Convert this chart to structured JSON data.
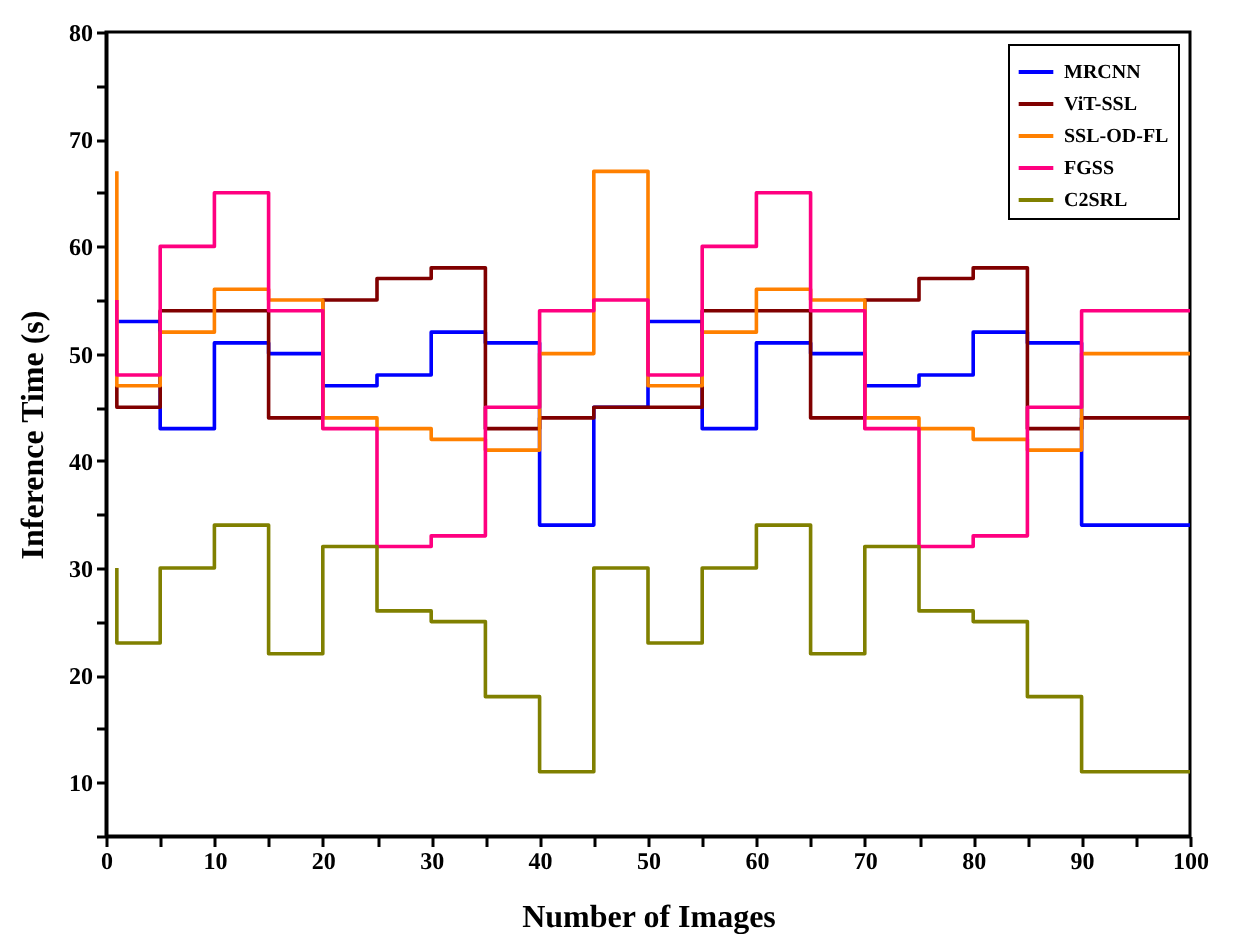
{
  "chart_data": {
    "type": "step",
    "xlabel": "Number of Images",
    "ylabel": "Inference Time (s)",
    "x": [
      1,
      5,
      10,
      15,
      20,
      25,
      30,
      35,
      40,
      45,
      50,
      55,
      60,
      65,
      70,
      75,
      80,
      85,
      90,
      95,
      100
    ],
    "series": [
      {
        "name": "MRCNN",
        "color": "#0000ff",
        "values": [
          53,
          53,
          43,
          51,
          50,
          47,
          48,
          52,
          51,
          34,
          45,
          53,
          43,
          51,
          50,
          47,
          48,
          52,
          51,
          34,
          34
        ]
      },
      {
        "name": "ViT-SSL",
        "color": "#800000",
        "values": [
          47,
          45,
          54,
          54,
          44,
          55,
          57,
          58,
          43,
          44,
          45,
          45,
          54,
          54,
          44,
          55,
          57,
          58,
          43,
          44,
          44
        ]
      },
      {
        "name": "SSL-OD-FL",
        "color": "#ff8000",
        "values": [
          67,
          47,
          52,
          56,
          55,
          44,
          43,
          42,
          41,
          50,
          67,
          47,
          52,
          56,
          55,
          44,
          43,
          42,
          41,
          50,
          50
        ]
      },
      {
        "name": "FGSS",
        "color": "#ff0080",
        "values": [
          55,
          48,
          60,
          65,
          54,
          43,
          32,
          33,
          45,
          54,
          55,
          48,
          60,
          65,
          54,
          43,
          32,
          33,
          45,
          54,
          54
        ]
      },
      {
        "name": "C2SRL",
        "color": "#808000",
        "values": [
          30,
          23,
          30,
          34,
          22,
          32,
          26,
          25,
          18,
          11,
          30,
          23,
          30,
          34,
          22,
          32,
          26,
          25,
          18,
          11,
          11
        ]
      }
    ],
    "xlim": [
      0,
      100
    ],
    "xticks": [
      0,
      {
        "value": 5,
        "label": null
      },
      10,
      {
        "value": 15,
        "label": null
      },
      20,
      {
        "value": 25,
        "label": null
      },
      30,
      {
        "value": 35,
        "label": null
      },
      40,
      {
        "value": 45,
        "label": null
      },
      50,
      {
        "value": 55,
        "label": null
      },
      60,
      {
        "value": 65,
        "label": null
      },
      70,
      {
        "value": 75,
        "label": null
      },
      80,
      {
        "value": 85,
        "label": null
      },
      90,
      {
        "value": 95,
        "label": null
      },
      100
    ],
    "ylim": [
      5,
      80
    ],
    "yticks": [
      {
        "value": 5,
        "label": null
      },
      10,
      {
        "value": 15,
        "label": null
      },
      20,
      {
        "value": 25,
        "label": null
      },
      30,
      {
        "value": 35,
        "label": null
      },
      40,
      {
        "value": 45,
        "label": null
      },
      50,
      {
        "value": 55,
        "label": null
      },
      60,
      {
        "value": 65,
        "label": null
      },
      70,
      {
        "value": 75,
        "label": null
      },
      80
    ],
    "grid": false,
    "legend": "top right",
    "marker": "none",
    "line_style": "solid"
  }
}
